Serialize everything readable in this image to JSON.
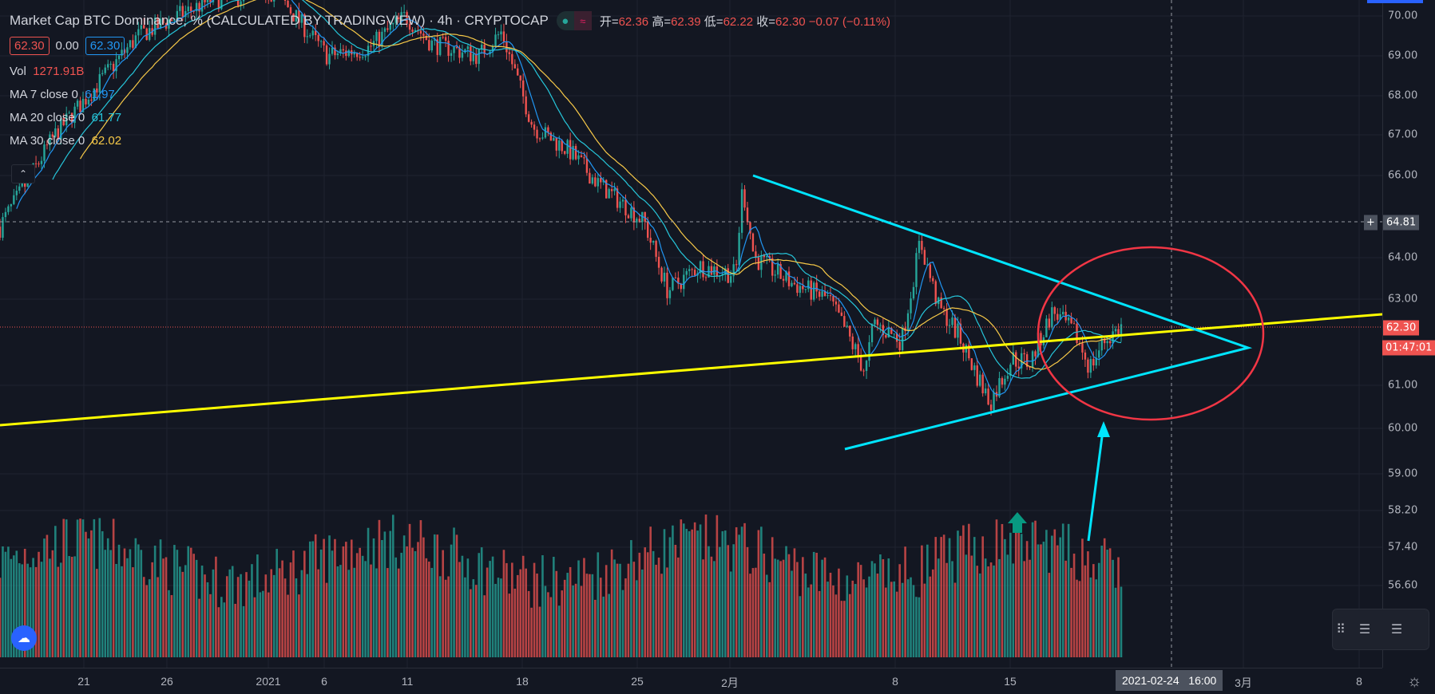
{
  "header": {
    "title": "Market Cap BTC Dominance, % (CALCULATED BY TRADINGVIEW) · 4h · CRYPTOCAP",
    "ohlc": [
      {
        "label": "开=",
        "value": "62.36"
      },
      {
        "label": "高=",
        "value": "62.39"
      },
      {
        "label": "低=",
        "value": "62.22"
      },
      {
        "label": "收=",
        "value": "62.30"
      }
    ],
    "change": "−0.07 (−0.11%)",
    "bid": "62.30",
    "spread": "0.00",
    "ask": "62.30"
  },
  "indicators": {
    "vol_label": "Vol",
    "vol_value": "1271.91B",
    "ma7_label": "MA 7 close 0",
    "ma7_value": "61.97",
    "ma20_label": "MA 20 close 0",
    "ma20_value": "61.77",
    "ma30_label": "MA 30 close 0",
    "ma30_value": "62.02"
  },
  "colors": {
    "up": "#26a69a",
    "down": "#ef5350",
    "ma7": "#2196f3",
    "ma20": "#26c6da",
    "ma30": "#f7c948",
    "trend": "#ffff00",
    "triangle": "#00e5ff",
    "circle": "#f23645"
  },
  "price_axis": {
    "ticks": [
      [
        "70.00",
        70
      ],
      [
        "69.00",
        69
      ],
      [
        "68.00",
        68
      ],
      [
        "67.00",
        67
      ],
      [
        "66.00",
        66
      ],
      [
        "64.00",
        64
      ],
      [
        "63.00",
        63
      ],
      [
        "61.00",
        61
      ],
      [
        "60.00",
        60
      ],
      [
        "59.00",
        59
      ],
      [
        "58.20",
        58.2
      ],
      [
        "57.40",
        57.4
      ],
      [
        "56.60",
        56.6
      ]
    ],
    "crosshair_price": "64.81",
    "last_price": "62.30",
    "countdown": "01:47:01"
  },
  "time_axis": {
    "labels": [
      "21",
      "26",
      "2021",
      "6",
      "11",
      "18",
      "25",
      "2月",
      "8",
      "15",
      "3月",
      "8"
    ],
    "crosshair_date": "2021-02-24",
    "crosshair_time": "16:00"
  },
  "chart_data": {
    "type": "candlestick",
    "interval": "4h",
    "waypoints_day_price": [
      [
        0,
        64.7
      ],
      [
        3.3,
        67
      ],
      [
        8.3,
        69.5
      ],
      [
        12.7,
        70.4
      ],
      [
        16.6,
        70.6
      ],
      [
        19.7,
        69
      ],
      [
        22.2,
        69.2
      ],
      [
        24.4,
        70
      ],
      [
        26,
        69.3
      ],
      [
        28.8,
        69
      ],
      [
        30.2,
        69.6
      ],
      [
        32.1,
        67.2
      ],
      [
        34.3,
        66.6
      ],
      [
        36,
        65.8
      ],
      [
        38.8,
        64.8
      ],
      [
        40.2,
        63.2
      ],
      [
        42.1,
        63.8
      ],
      [
        44.3,
        63.6
      ],
      [
        44.7,
        65.7
      ],
      [
        45.4,
        64
      ],
      [
        47.6,
        63.4
      ],
      [
        49.9,
        63
      ],
      [
        52.1,
        61.3
      ],
      [
        52.6,
        62.4
      ],
      [
        54.3,
        62
      ],
      [
        55.4,
        64.4
      ],
      [
        56.5,
        62.8
      ],
      [
        57.6,
        62.2
      ],
      [
        59.6,
        60.6
      ],
      [
        60.9,
        61.6
      ],
      [
        62,
        61.5
      ],
      [
        63.4,
        62.7
      ],
      [
        64.8,
        62.1
      ],
      [
        65.6,
        61.4
      ],
      [
        66.5,
        62
      ],
      [
        67.5,
        62.3
      ]
    ]
  }
}
